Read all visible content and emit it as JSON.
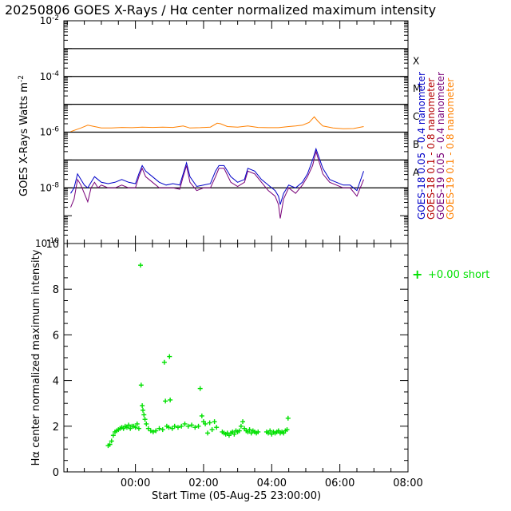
{
  "title": "20250806 GOES X-Rays / Hα center normalized maximum intensity",
  "colors": {
    "goes18_short": "#0000c8",
    "goes18_long": "#b40000",
    "goes19_short": "#780078",
    "goes19_long": "#ff8000",
    "ha_short": "#00e000",
    "axis": "#000000"
  },
  "chart_data": [
    {
      "type": "line",
      "title": "20250806 GOES X-Rays / Hα center normalized maximum intensity",
      "ylabel": "GOES X-Rays Watts m",
      "ylabel_sup": "-2",
      "yscale": "log",
      "ylim": [
        1e-10,
        0.01
      ],
      "xlim_hours": [
        -1.1,
        9.0
      ],
      "y_ticks": [
        {
          "value": -10,
          "base": "10",
          "exp": "-10"
        },
        {
          "value": -8,
          "base": "10",
          "exp": "-8"
        },
        {
          "value": -6,
          "base": "10",
          "exp": "-6"
        },
        {
          "value": -4,
          "base": "10",
          "exp": "-4"
        },
        {
          "value": -2,
          "base": "10",
          "exp": "-2"
        }
      ],
      "flare_levels": [
        {
          "class": "A",
          "log_flux": -8
        },
        {
          "class": "B",
          "log_flux": -7
        },
        {
          "class": "C",
          "log_flux": -6
        },
        {
          "class": "M",
          "log_flux": -5
        },
        {
          "class": "X",
          "log_flux": -4
        }
      ],
      "threshold_lines_log": [
        -3,
        -4,
        -5,
        -6,
        -7,
        -8
      ],
      "legend": [
        {
          "label": "GOES-18 0.05 - 0.4 nanometer",
          "color": "#0000c8"
        },
        {
          "label": "GOES-18 0.1 - 0.8 nanometer",
          "color": "#b40000"
        },
        {
          "label": "GOES-19 0.05 - 0.4 nanometer",
          "color": "#780078"
        },
        {
          "label": "GOES-19 0.1 - 0.8 nanometer",
          "color": "#ff8000"
        }
      ],
      "series": [
        {
          "name": "GOES-19 0.1 - 0.8 nanometer",
          "color": "#ff8000",
          "x_hours": [
            -0.9,
            -0.6,
            -0.4,
            -0.2,
            0.0,
            0.3,
            0.6,
            0.9,
            1.2,
            1.5,
            1.8,
            2.1,
            2.4,
            2.6,
            2.9,
            3.2,
            3.4,
            3.5,
            3.7,
            4.0,
            4.3,
            4.6,
            4.9,
            5.2,
            5.5,
            5.7,
            5.9,
            6.1,
            6.25,
            6.35,
            6.5,
            6.8,
            7.1,
            7.4,
            7.7
          ],
          "log_flux": [
            -5.98,
            -5.85,
            -5.75,
            -5.8,
            -5.85,
            -5.85,
            -5.83,
            -5.84,
            -5.82,
            -5.83,
            -5.82,
            -5.83,
            -5.78,
            -5.85,
            -5.84,
            -5.82,
            -5.68,
            -5.7,
            -5.8,
            -5.82,
            -5.78,
            -5.83,
            -5.84,
            -5.84,
            -5.8,
            -5.78,
            -5.75,
            -5.65,
            -5.45,
            -5.6,
            -5.78,
            -5.85,
            -5.88,
            -5.87,
            -5.8
          ]
        },
        {
          "name": "GOES-19 0.05 - 0.4 nanometer",
          "color": "#780078",
          "x_hours": [
            -0.9,
            -0.8,
            -0.7,
            -0.6,
            -0.5,
            -0.4,
            -0.3,
            -0.2,
            -0.1,
            0.0,
            0.2,
            0.4,
            0.6,
            0.8,
            1.0,
            1.1,
            1.2,
            1.3,
            1.5,
            1.7,
            1.9,
            2.1,
            2.3,
            2.4,
            2.5,
            2.6,
            2.8,
            3.0,
            3.2,
            3.35,
            3.45,
            3.6,
            3.8,
            4.0,
            4.2,
            4.3,
            4.5,
            4.7,
            4.9,
            5.1,
            5.2,
            5.25,
            5.35,
            5.5,
            5.7,
            5.9,
            6.05,
            6.2,
            6.3,
            6.5,
            6.7,
            6.9,
            7.1,
            7.3,
            7.5,
            7.7
          ],
          "log_flux": [
            -8.7,
            -8.4,
            -7.7,
            -7.9,
            -8.2,
            -8.5,
            -8.0,
            -7.8,
            -8.0,
            -7.9,
            -8.0,
            -8.0,
            -7.9,
            -8.0,
            -8.0,
            -7.6,
            -7.3,
            -7.6,
            -7.8,
            -8.0,
            -8.0,
            -8.0,
            -8.05,
            -7.6,
            -7.2,
            -7.8,
            -8.1,
            -8.0,
            -8.0,
            -7.6,
            -7.3,
            -7.3,
            -7.8,
            -7.95,
            -7.8,
            -7.4,
            -7.5,
            -7.8,
            -8.1,
            -8.3,
            -8.6,
            -9.1,
            -8.4,
            -8.0,
            -8.2,
            -7.9,
            -7.6,
            -7.2,
            -6.7,
            -7.5,
            -7.8,
            -7.9,
            -8.0,
            -8.0,
            -8.3,
            -7.7
          ]
        },
        {
          "name": "GOES-18 0.05 - 0.4 nanometer",
          "color": "#0000c8",
          "x_hours": [
            -0.9,
            -0.8,
            -0.7,
            -0.6,
            -0.5,
            -0.4,
            -0.3,
            -0.2,
            -0.1,
            0.0,
            0.2,
            0.4,
            0.6,
            0.8,
            1.0,
            1.1,
            1.2,
            1.3,
            1.5,
            1.7,
            1.9,
            2.1,
            2.3,
            2.4,
            2.5,
            2.6,
            2.8,
            3.0,
            3.2,
            3.35,
            3.45,
            3.6,
            3.8,
            4.0,
            4.2,
            4.3,
            4.5,
            4.7,
            4.9,
            5.1,
            5.2,
            5.25,
            5.35,
            5.5,
            5.7,
            5.9,
            6.05,
            6.2,
            6.3,
            6.5,
            6.7,
            6.9,
            7.1,
            7.3,
            7.5,
            7.7
          ],
          "log_flux": [
            -8.2,
            -8.0,
            -7.5,
            -7.7,
            -7.9,
            -8.0,
            -7.8,
            -7.6,
            -7.7,
            -7.8,
            -7.85,
            -7.8,
            -7.7,
            -7.8,
            -7.85,
            -7.5,
            -7.2,
            -7.4,
            -7.6,
            -7.8,
            -7.9,
            -7.85,
            -7.9,
            -7.5,
            -7.1,
            -7.6,
            -7.95,
            -7.9,
            -7.85,
            -7.4,
            -7.2,
            -7.2,
            -7.6,
            -7.8,
            -7.7,
            -7.3,
            -7.4,
            -7.7,
            -7.9,
            -8.1,
            -8.3,
            -8.6,
            -8.2,
            -7.9,
            -8.0,
            -7.8,
            -7.5,
            -7.0,
            -6.6,
            -7.3,
            -7.7,
            -7.8,
            -7.9,
            -7.9,
            -8.1,
            -7.4
          ]
        }
      ]
    },
    {
      "type": "scatter",
      "ylabel": "Hα center normalized maximum intensity",
      "xlabel": "Start Time (05-Aug-25 23:00:00)",
      "ylim": [
        0,
        10
      ],
      "xlim_hours": [
        -1.1,
        9.0
      ],
      "y_ticks": [
        "0",
        "2",
        "4",
        "6",
        "8",
        "10"
      ],
      "x_ticks": [
        {
          "hours": 1,
          "label": "00:00"
        },
        {
          "hours": 3,
          "label": "02:00"
        },
        {
          "hours": 5,
          "label": "04:00"
        },
        {
          "hours": 7,
          "label": "06:00"
        },
        {
          "hours": 9,
          "label": "08:00"
        }
      ],
      "legend": {
        "label": "+0.00 short",
        "marker": "+",
        "color": "#00e000"
      },
      "series": [
        {
          "name": "short",
          "color": "#00e000",
          "points": [
            [
              0.2,
              1.15
            ],
            [
              0.25,
              1.2
            ],
            [
              0.3,
              1.35
            ],
            [
              0.35,
              1.6
            ],
            [
              0.4,
              1.75
            ],
            [
              0.45,
              1.8
            ],
            [
              0.5,
              1.85
            ],
            [
              0.55,
              1.9
            ],
            [
              0.6,
              1.95
            ],
            [
              0.65,
              1.9
            ],
            [
              0.7,
              2.0
            ],
            [
              0.75,
              1.95
            ],
            [
              0.8,
              2.05
            ],
            [
              0.85,
              1.9
            ],
            [
              0.9,
              2.0
            ],
            [
              0.95,
              2.0
            ],
            [
              1.0,
              1.95
            ],
            [
              1.05,
              2.1
            ],
            [
              1.1,
              1.9
            ],
            [
              1.15,
              9.05
            ],
            [
              1.17,
              3.8
            ],
            [
              1.2,
              2.9
            ],
            [
              1.22,
              2.7
            ],
            [
              1.25,
              2.5
            ],
            [
              1.28,
              2.3
            ],
            [
              1.32,
              2.1
            ],
            [
              1.38,
              1.9
            ],
            [
              1.45,
              1.8
            ],
            [
              1.52,
              1.75
            ],
            [
              1.6,
              1.8
            ],
            [
              1.7,
              1.9
            ],
            [
              1.8,
              1.85
            ],
            [
              1.85,
              4.8
            ],
            [
              1.88,
              3.1
            ],
            [
              1.92,
              2.0
            ],
            [
              1.98,
              1.95
            ],
            [
              2.0,
              5.05
            ],
            [
              2.02,
              3.15
            ],
            [
              2.08,
              1.9
            ],
            [
              2.15,
              2.0
            ],
            [
              2.25,
              1.95
            ],
            [
              2.35,
              2.0
            ],
            [
              2.45,
              2.1
            ],
            [
              2.55,
              2.0
            ],
            [
              2.65,
              2.05
            ],
            [
              2.75,
              1.95
            ],
            [
              2.85,
              2.0
            ],
            [
              2.9,
              3.65
            ],
            [
              2.95,
              2.45
            ],
            [
              3.0,
              2.2
            ],
            [
              3.05,
              2.1
            ],
            [
              3.12,
              1.7
            ],
            [
              3.18,
              2.15
            ],
            [
              3.25,
              1.85
            ],
            [
              3.32,
              2.2
            ],
            [
              3.38,
              1.95
            ],
            [
              3.55,
              1.75
            ],
            [
              3.6,
              1.7
            ],
            [
              3.65,
              1.65
            ],
            [
              3.7,
              1.7
            ],
            [
              3.75,
              1.6
            ],
            [
              3.8,
              1.7
            ],
            [
              3.85,
              1.75
            ],
            [
              3.9,
              1.65
            ],
            [
              3.95,
              1.8
            ],
            [
              4.0,
              1.75
            ],
            [
              4.05,
              1.8
            ],
            [
              4.1,
              2.0
            ],
            [
              4.15,
              2.2
            ],
            [
              4.2,
              1.9
            ],
            [
              4.25,
              1.8
            ],
            [
              4.3,
              1.75
            ],
            [
              4.35,
              1.85
            ],
            [
              4.4,
              1.7
            ],
            [
              4.45,
              1.8
            ],
            [
              4.5,
              1.75
            ],
            [
              4.55,
              1.7
            ],
            [
              4.6,
              1.75
            ],
            [
              4.85,
              1.75
            ],
            [
              4.9,
              1.7
            ],
            [
              4.95,
              1.8
            ],
            [
              5.0,
              1.65
            ],
            [
              5.05,
              1.75
            ],
            [
              5.1,
              1.7
            ],
            [
              5.15,
              1.75
            ],
            [
              5.2,
              1.8
            ],
            [
              5.25,
              1.7
            ],
            [
              5.3,
              1.75
            ],
            [
              5.35,
              1.7
            ],
            [
              5.4,
              1.8
            ],
            [
              5.45,
              1.85
            ],
            [
              5.48,
              2.35
            ]
          ]
        }
      ]
    }
  ]
}
